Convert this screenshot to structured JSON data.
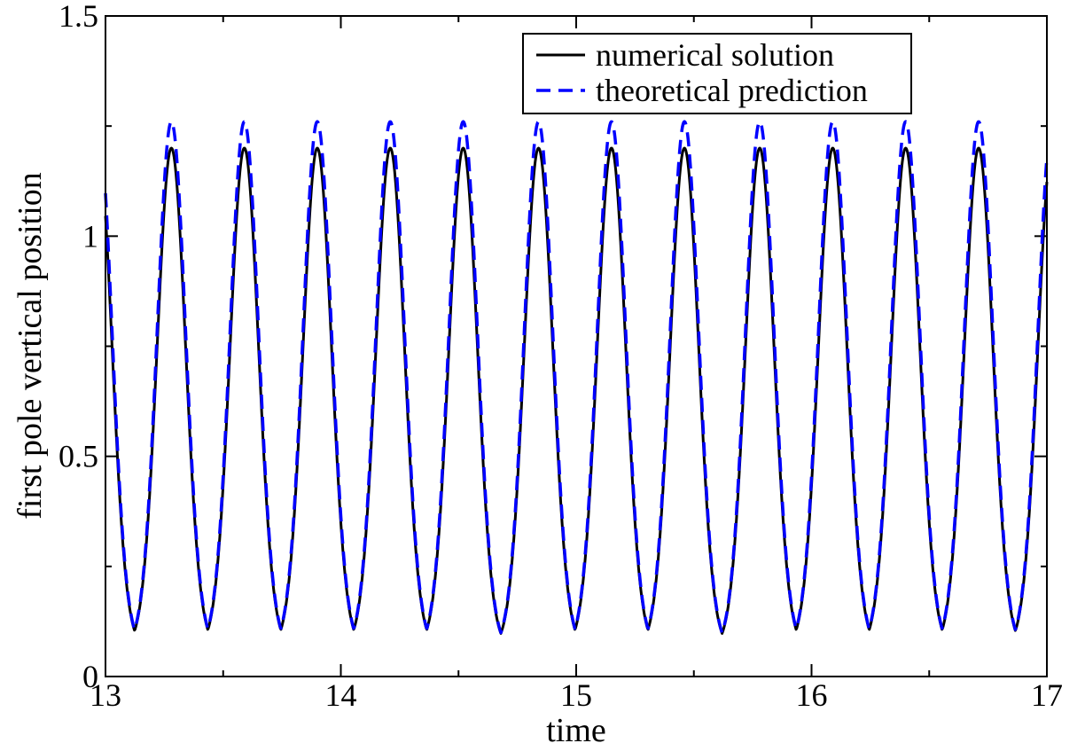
{
  "chart_data": {
    "type": "line",
    "xlabel": "time",
    "ylabel": "first pole vertical position",
    "xlim": [
      13,
      17
    ],
    "ylim": [
      0,
      1.5
    ],
    "xticks": [
      13,
      14,
      15,
      16,
      17
    ],
    "xtick_labels": [
      "13",
      "14",
      "15",
      "16",
      "17"
    ],
    "yticks": [
      0,
      0.5,
      1,
      1.5
    ],
    "ytick_labels": [
      "0",
      "0.5",
      "1",
      "1.5"
    ],
    "grid": false,
    "legend_position": "top-right",
    "period": 0.3125,
    "series": [
      {
        "name": "numerical solution",
        "color": "#000000",
        "dash": "solid",
        "peak_times": [
          13.28,
          13.59,
          13.9,
          14.21,
          14.52,
          14.84,
          15.15,
          15.46,
          15.78,
          16.09,
          16.4,
          16.71
        ],
        "peak_value": 1.2,
        "min_value": 0.065
      },
      {
        "name": "theoretical prediction",
        "color": "#0000ff",
        "dash": "dashed",
        "peak_times": [
          13.28,
          13.59,
          13.9,
          14.21,
          14.52,
          14.84,
          15.15,
          15.46,
          15.78,
          16.09,
          16.4,
          16.71
        ],
        "peak_value": 1.26,
        "min_value": 0.065
      }
    ]
  }
}
